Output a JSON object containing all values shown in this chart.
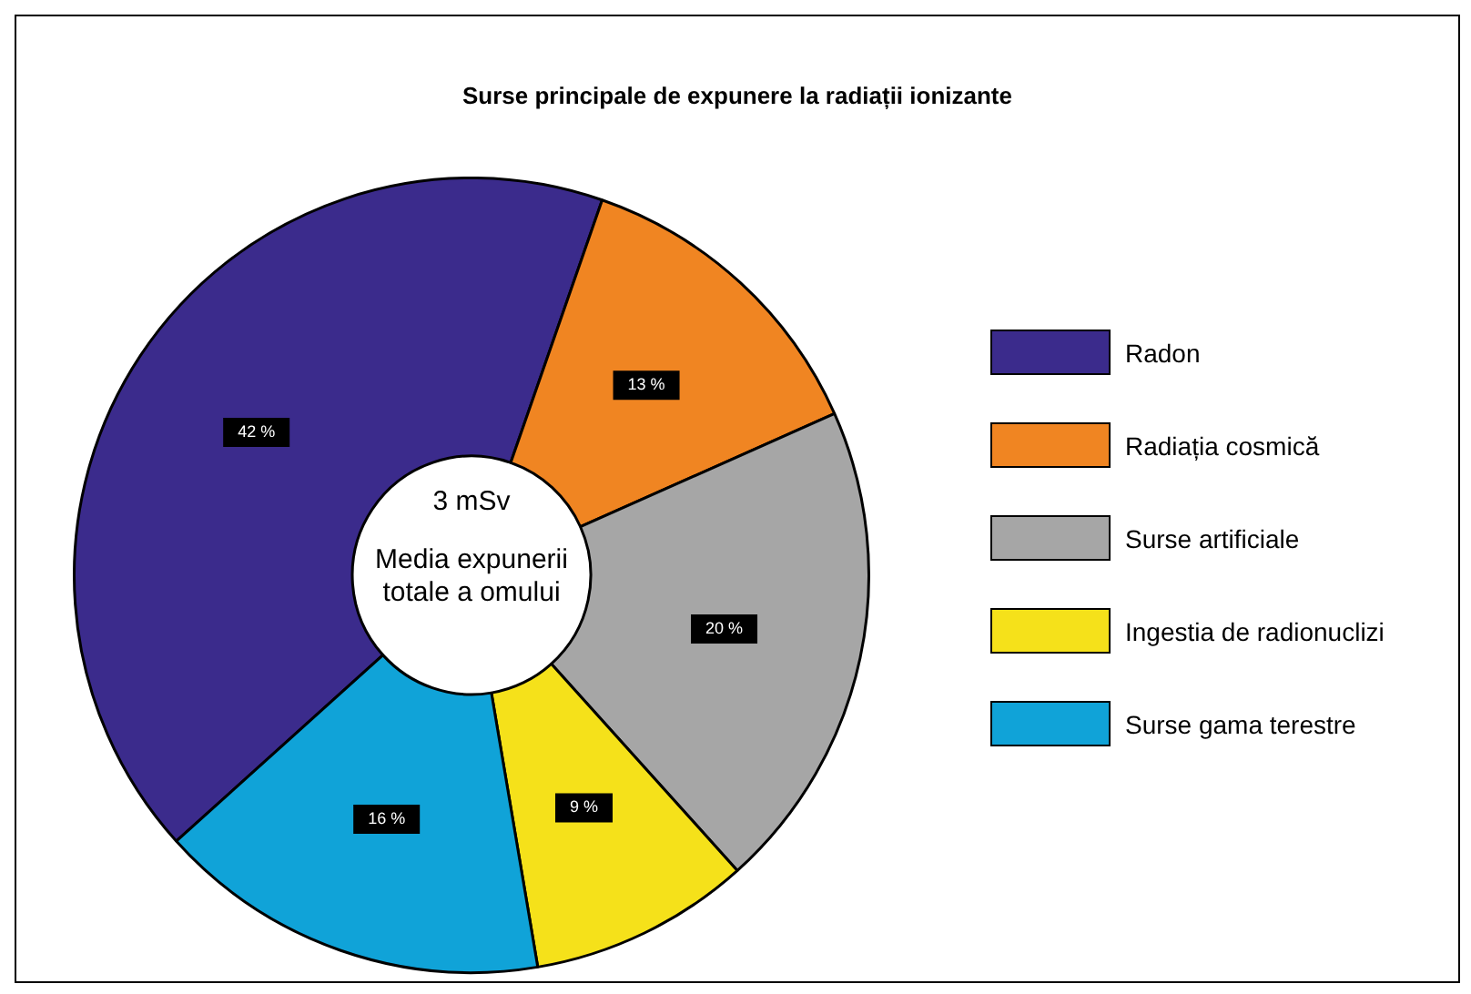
{
  "chart_data": {
    "type": "donut",
    "title": "Surse principale de expunere la radiații ionizante",
    "categories": [
      "Radon",
      "Radiația cosmică",
      "Surse artificiale",
      "Ingestia de radionuclizi",
      "Surse gama terestre"
    ],
    "values": [
      42,
      13,
      20,
      9,
      16
    ],
    "colors": [
      "#3b2b8c",
      "#f08522",
      "#a6a6a6",
      "#f5e11a",
      "#10a3d8"
    ],
    "value_labels": [
      "42 %",
      "13 %",
      "20 %",
      "9 %",
      "16 %"
    ],
    "annotations": [
      "3 mSv",
      "Media expunerii totale a omului"
    ],
    "legend": "right"
  }
}
